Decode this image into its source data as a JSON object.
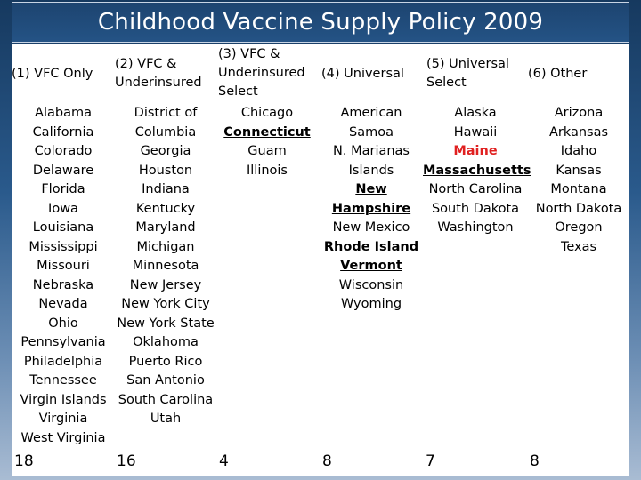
{
  "title": "Childhood Vaccine Supply Policy 2009",
  "columns": [
    {
      "header": [
        "(1) VFC Only"
      ],
      "states": [
        {
          "name": "Alabama"
        },
        {
          "name": "California"
        },
        {
          "name": "Colorado"
        },
        {
          "name": "Delaware"
        },
        {
          "name": "Florida"
        },
        {
          "name": "Iowa"
        },
        {
          "name": "Louisiana"
        },
        {
          "name": "Mississippi"
        },
        {
          "name": "Missouri"
        },
        {
          "name": "Nebraska"
        },
        {
          "name": "Nevada"
        },
        {
          "name": "Ohio"
        },
        {
          "name": "Pennsylvania"
        },
        {
          "name": "Philadelphia"
        },
        {
          "name": "Tennessee"
        },
        {
          "name": "Virgin Islands"
        },
        {
          "name": "Virginia"
        },
        {
          "name": "West Virginia"
        }
      ],
      "count": "18"
    },
    {
      "header": [
        "(2) VFC &",
        "Underinsured"
      ],
      "states": [
        {
          "name": "District of"
        },
        {
          "name": "Columbia"
        },
        {
          "name": "Georgia"
        },
        {
          "name": "Houston"
        },
        {
          "name": "Indiana"
        },
        {
          "name": "Kentucky"
        },
        {
          "name": "Maryland"
        },
        {
          "name": "Michigan"
        },
        {
          "name": "Minnesota"
        },
        {
          "name": "New Jersey"
        },
        {
          "name": "New York City"
        },
        {
          "name": "New York State"
        },
        {
          "name": "Oklahoma"
        },
        {
          "name": "Puerto Rico"
        },
        {
          "name": "San Antonio"
        },
        {
          "name": "South Carolina"
        },
        {
          "name": "Utah"
        }
      ],
      "count": "16"
    },
    {
      "header": [
        "(3) VFC &",
        "Underinsured",
        "Select"
      ],
      "states": [
        {
          "name": "Chicago"
        },
        {
          "name": "Connecticut",
          "style": "ul"
        },
        {
          "name": "Guam"
        },
        {
          "name": "Illinois"
        }
      ],
      "count": "4"
    },
    {
      "header": [
        "(4) Universal"
      ],
      "states": [
        {
          "name": "American"
        },
        {
          "name": "Samoa"
        },
        {
          "name": "N. Marianas"
        },
        {
          "name": "Islands"
        },
        {
          "name": "New",
          "style": "ul"
        },
        {
          "name": "Hampshire",
          "style": "ul"
        },
        {
          "name": "New Mexico"
        },
        {
          "name": "Rhode Island",
          "style": "ul"
        },
        {
          "name": "Vermont",
          "style": "ul"
        },
        {
          "name": "Wisconsin"
        },
        {
          "name": "Wyoming"
        }
      ],
      "count": "8"
    },
    {
      "header": [
        "(5) Universal",
        "Select"
      ],
      "states": [
        {
          "name": "Alaska"
        },
        {
          "name": "Hawaii"
        },
        {
          "name": "Maine",
          "style": "ul red"
        },
        {
          "name": "Massachusetts",
          "style": "ul"
        },
        {
          "name": "North Carolina"
        },
        {
          "name": "South Dakota"
        },
        {
          "name": "Washington"
        }
      ],
      "count": "7"
    },
    {
      "header": [
        "(6) Other"
      ],
      "states": [
        {
          "name": "Arizona"
        },
        {
          "name": "Arkansas"
        },
        {
          "name": "Idaho"
        },
        {
          "name": "Kansas"
        },
        {
          "name": "Montana"
        },
        {
          "name": "North Dakota"
        },
        {
          "name": "Oregon"
        },
        {
          "name": "Texas"
        }
      ],
      "count": "8"
    }
  ]
}
